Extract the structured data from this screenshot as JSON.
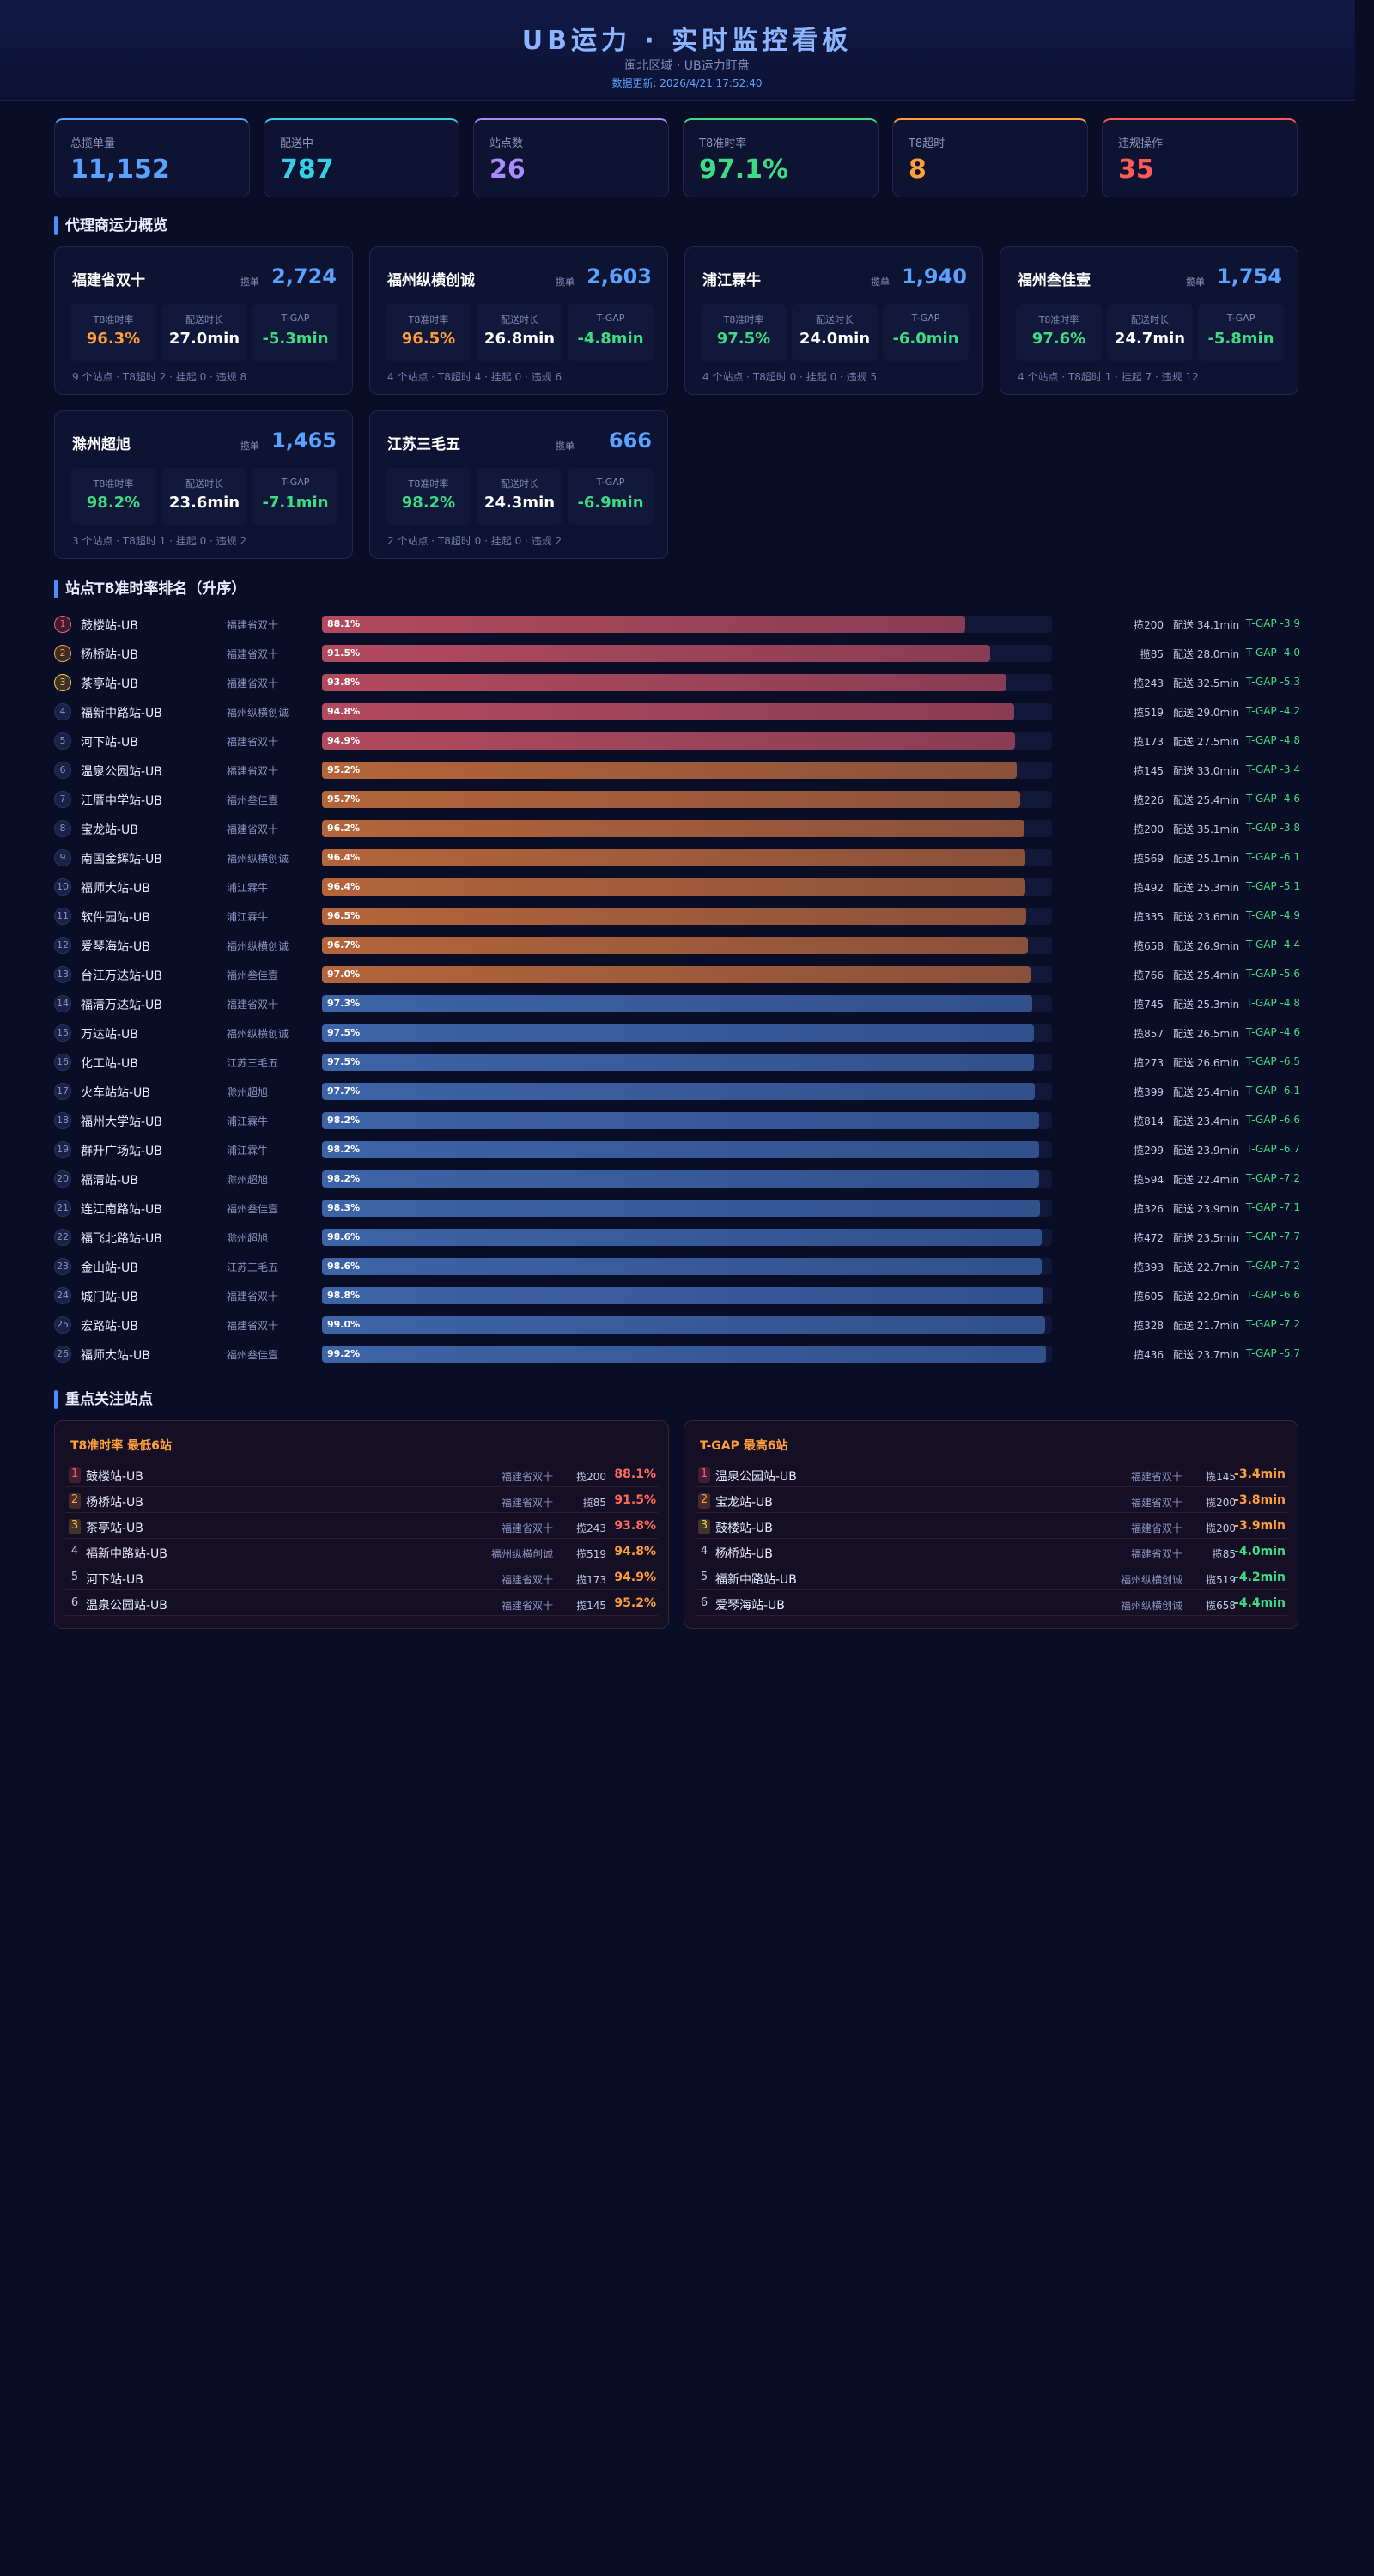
{
  "header": {
    "title": "UB运力 · 实时监控看板",
    "subtitle": "闽北区域 · UB运力盯盘",
    "updated": "数据更新: 2026/4/21 17:52:40"
  },
  "kpis": [
    {
      "label": "总揽单量",
      "value": "11,152",
      "color": "#5aa2ff"
    },
    {
      "label": "配送中",
      "value": "787",
      "color": "#35d0e8"
    },
    {
      "label": "站点数",
      "value": "26",
      "color": "#a98bff"
    },
    {
      "label": "T8准时率",
      "value": "97.1%",
      "color": "#3ddc84"
    },
    {
      "label": "T8超时",
      "value": "8",
      "color": "#ff9f3a"
    },
    {
      "label": "违规操作",
      "value": "35",
      "color": "#ff5a5a"
    }
  ],
  "agents": {
    "title": "代理商运力概览",
    "labels": {
      "orders": "揽单",
      "ontime": "T8准时率",
      "duration": "配送时长",
      "gap": "T-GAP"
    },
    "items": [
      {
        "name": "福建省双十",
        "orders": "2,724",
        "ontime": "96.3%",
        "ontime_color": "#ff9f3a",
        "duration": "27.0min",
        "gap": "-5.3min",
        "footer": "9 个站点 · T8超时 2 · 挂起 0 · 违规 8"
      },
      {
        "name": "福州纵横创诚",
        "orders": "2,603",
        "ontime": "96.5%",
        "ontime_color": "#ff9f3a",
        "duration": "26.8min",
        "gap": "-4.8min",
        "footer": "4 个站点 · T8超时 4 · 挂起 0 · 违规 6"
      },
      {
        "name": "浦江霖牛",
        "orders": "1,940",
        "ontime": "97.5%",
        "ontime_color": "#3ddc84",
        "duration": "24.0min",
        "gap": "-6.0min",
        "footer": "4 个站点 · T8超时 0 · 挂起 0 · 违规 5"
      },
      {
        "name": "福州叁佳壹",
        "orders": "1,754",
        "ontime": "97.6%",
        "ontime_color": "#3ddc84",
        "duration": "24.7min",
        "gap": "-5.8min",
        "footer": "4 个站点 · T8超时 1 · 挂起 7 · 违规 12"
      },
      {
        "name": "滁州超旭",
        "orders": "1,465",
        "ontime": "98.2%",
        "ontime_color": "#3ddc84",
        "duration": "23.6min",
        "gap": "-7.1min",
        "footer": "3 个站点 · T8超时 1 · 挂起 0 · 违规 2"
      },
      {
        "name": "江苏三毛五",
        "orders": "666",
        "ontime": "98.2%",
        "ontime_color": "#3ddc84",
        "duration": "24.3min",
        "gap": "-6.9min",
        "footer": "2 个站点 · T8超时 0 · 挂起 0 · 违规 2"
      }
    ]
  },
  "ranking": {
    "title": "站点T8准时率排名（升序）",
    "rows": [
      {
        "rank": 1,
        "name": "鼓楼站-UB",
        "agent": "福建省双十",
        "rate": 88.1,
        "rate_label": "88.1%",
        "orders": "揽200",
        "duration": "配送 34.1min",
        "gap": "T-GAP -3.9",
        "color": "#b34a5e"
      },
      {
        "rank": 2,
        "name": "杨桥站-UB",
        "agent": "福建省双十",
        "rate": 91.5,
        "rate_label": "91.5%",
        "orders": "揽85",
        "duration": "配送 28.0min",
        "gap": "T-GAP -4.0",
        "color": "#b34a5e"
      },
      {
        "rank": 3,
        "name": "茶亭站-UB",
        "agent": "福建省双十",
        "rate": 93.8,
        "rate_label": "93.8%",
        "orders": "揽243",
        "duration": "配送 32.5min",
        "gap": "T-GAP -5.3",
        "color": "#b34a5e"
      },
      {
        "rank": 4,
        "name": "福新中路站-UB",
        "agent": "福州纵横创诚",
        "rate": 94.8,
        "rate_label": "94.8%",
        "orders": "揽519",
        "duration": "配送 29.0min",
        "gap": "T-GAP -4.2",
        "color": "#b34a5e"
      },
      {
        "rank": 5,
        "name": "河下站-UB",
        "agent": "福建省双十",
        "rate": 94.9,
        "rate_label": "94.9%",
        "orders": "揽173",
        "duration": "配送 27.5min",
        "gap": "T-GAP -4.8",
        "color": "#b34a5e"
      },
      {
        "rank": 6,
        "name": "温泉公园站-UB",
        "agent": "福建省双十",
        "rate": 95.2,
        "rate_label": "95.2%",
        "orders": "揽145",
        "duration": "配送 33.0min",
        "gap": "T-GAP -3.4",
        "color": "#b5653a"
      },
      {
        "rank": 7,
        "name": "江厝中学站-UB",
        "agent": "福州叁佳壹",
        "rate": 95.7,
        "rate_label": "95.7%",
        "orders": "揽226",
        "duration": "配送 25.4min",
        "gap": "T-GAP -4.6",
        "color": "#b5653a"
      },
      {
        "rank": 8,
        "name": "宝龙站-UB",
        "agent": "福建省双十",
        "rate": 96.2,
        "rate_label": "96.2%",
        "orders": "揽200",
        "duration": "配送 35.1min",
        "gap": "T-GAP -3.8",
        "color": "#b5653a"
      },
      {
        "rank": 9,
        "name": "南国金辉站-UB",
        "agent": "福州纵横创诚",
        "rate": 96.4,
        "rate_label": "96.4%",
        "orders": "揽569",
        "duration": "配送 25.1min",
        "gap": "T-GAP -6.1",
        "color": "#b5653a"
      },
      {
        "rank": 10,
        "name": "福师大站-UB",
        "agent": "浦江霖牛",
        "rate": 96.4,
        "rate_label": "96.4%",
        "orders": "揽492",
        "duration": "配送 25.3min",
        "gap": "T-GAP -5.1",
        "color": "#b5653a"
      },
      {
        "rank": 11,
        "name": "软件园站-UB",
        "agent": "浦江霖牛",
        "rate": 96.5,
        "rate_label": "96.5%",
        "orders": "揽335",
        "duration": "配送 23.6min",
        "gap": "T-GAP -4.9",
        "color": "#b5653a"
      },
      {
        "rank": 12,
        "name": "爱琴海站-UB",
        "agent": "福州纵横创诚",
        "rate": 96.7,
        "rate_label": "96.7%",
        "orders": "揽658",
        "duration": "配送 26.9min",
        "gap": "T-GAP -4.4",
        "color": "#b5653a"
      },
      {
        "rank": 13,
        "name": "台江万达站-UB",
        "agent": "福州叁佳壹",
        "rate": 97.0,
        "rate_label": "97.0%",
        "orders": "揽766",
        "duration": "配送 25.4min",
        "gap": "T-GAP -5.6",
        "color": "#b5653a"
      },
      {
        "rank": 14,
        "name": "福清万达站-UB",
        "agent": "福建省双十",
        "rate": 97.3,
        "rate_label": "97.3%",
        "orders": "揽745",
        "duration": "配送 25.3min",
        "gap": "T-GAP -4.8",
        "color": "#3d64a8"
      },
      {
        "rank": 15,
        "name": "万达站-UB",
        "agent": "福州纵横创诚",
        "rate": 97.5,
        "rate_label": "97.5%",
        "orders": "揽857",
        "duration": "配送 26.5min",
        "gap": "T-GAP -4.6",
        "color": "#3d64a8"
      },
      {
        "rank": 16,
        "name": "化工站-UB",
        "agent": "江苏三毛五",
        "rate": 97.5,
        "rate_label": "97.5%",
        "orders": "揽273",
        "duration": "配送 26.6min",
        "gap": "T-GAP -6.5",
        "color": "#3d64a8"
      },
      {
        "rank": 17,
        "name": "火车站站-UB",
        "agent": "滁州超旭",
        "rate": 97.7,
        "rate_label": "97.7%",
        "orders": "揽399",
        "duration": "配送 25.4min",
        "gap": "T-GAP -6.1",
        "color": "#3d64a8"
      },
      {
        "rank": 18,
        "name": "福州大学站-UB",
        "agent": "浦江霖牛",
        "rate": 98.2,
        "rate_label": "98.2%",
        "orders": "揽814",
        "duration": "配送 23.4min",
        "gap": "T-GAP -6.6",
        "color": "#3d64a8"
      },
      {
        "rank": 19,
        "name": "群升广场站-UB",
        "agent": "浦江霖牛",
        "rate": 98.2,
        "rate_label": "98.2%",
        "orders": "揽299",
        "duration": "配送 23.9min",
        "gap": "T-GAP -6.7",
        "color": "#3d64a8"
      },
      {
        "rank": 20,
        "name": "福清站-UB",
        "agent": "滁州超旭",
        "rate": 98.2,
        "rate_label": "98.2%",
        "orders": "揽594",
        "duration": "配送 22.4min",
        "gap": "T-GAP -7.2",
        "color": "#3d64a8"
      },
      {
        "rank": 21,
        "name": "连江南路站-UB",
        "agent": "福州叁佳壹",
        "rate": 98.3,
        "rate_label": "98.3%",
        "orders": "揽326",
        "duration": "配送 23.9min",
        "gap": "T-GAP -7.1",
        "color": "#3d64a8"
      },
      {
        "rank": 22,
        "name": "福飞北路站-UB",
        "agent": "滁州超旭",
        "rate": 98.6,
        "rate_label": "98.6%",
        "orders": "揽472",
        "duration": "配送 23.5min",
        "gap": "T-GAP -7.7",
        "color": "#3d64a8"
      },
      {
        "rank": 23,
        "name": "金山站-UB",
        "agent": "江苏三毛五",
        "rate": 98.6,
        "rate_label": "98.6%",
        "orders": "揽393",
        "duration": "配送 22.7min",
        "gap": "T-GAP -7.2",
        "color": "#3d64a8"
      },
      {
        "rank": 24,
        "name": "城门站-UB",
        "agent": "福建省双十",
        "rate": 98.8,
        "rate_label": "98.8%",
        "orders": "揽605",
        "duration": "配送 22.9min",
        "gap": "T-GAP -6.6",
        "color": "#3d64a8"
      },
      {
        "rank": 25,
        "name": "宏路站-UB",
        "agent": "福建省双十",
        "rate": 99.0,
        "rate_label": "99.0%",
        "orders": "揽328",
        "duration": "配送 21.7min",
        "gap": "T-GAP -7.2",
        "color": "#3d64a8"
      },
      {
        "rank": 26,
        "name": "福师大站-UB",
        "agent": "福州叁佳壹",
        "rate": 99.2,
        "rate_label": "99.2%",
        "orders": "揽436",
        "duration": "配送 23.7min",
        "gap": "T-GAP -5.7",
        "color": "#3d64a8"
      }
    ]
  },
  "focus": {
    "title": "重点关注站点",
    "panels": [
      {
        "title": "T8准时率 最低6站",
        "rows": [
          {
            "rank": 1,
            "name": "鼓楼站-UB",
            "agent": "福建省双十",
            "orders": "揽200",
            "value": "88.1%",
            "color": "#ff6a5a"
          },
          {
            "rank": 2,
            "name": "杨桥站-UB",
            "agent": "福建省双十",
            "orders": "揽85",
            "value": "91.5%",
            "color": "#ff6a5a"
          },
          {
            "rank": 3,
            "name": "茶亭站-UB",
            "agent": "福建省双十",
            "orders": "揽243",
            "value": "93.8%",
            "color": "#ff6a5a"
          },
          {
            "rank": 4,
            "name": "福新中路站-UB",
            "agent": "福州纵横创诚",
            "orders": "揽519",
            "value": "94.8%",
            "color": "#ff9f3a"
          },
          {
            "rank": 5,
            "name": "河下站-UB",
            "agent": "福建省双十",
            "orders": "揽173",
            "value": "94.9%",
            "color": "#ff9f3a"
          },
          {
            "rank": 6,
            "name": "温泉公园站-UB",
            "agent": "福建省双十",
            "orders": "揽145",
            "value": "95.2%",
            "color": "#ff9f3a"
          }
        ]
      },
      {
        "title": "T-GAP 最高6站",
        "rows": [
          {
            "rank": 1,
            "name": "温泉公园站-UB",
            "agent": "福建省双十",
            "orders": "揽145",
            "value": "-3.4min",
            "color": "#ff9f3a"
          },
          {
            "rank": 2,
            "name": "宝龙站-UB",
            "agent": "福建省双十",
            "orders": "揽200",
            "value": "-3.8min",
            "color": "#ff9f3a"
          },
          {
            "rank": 3,
            "name": "鼓楼站-UB",
            "agent": "福建省双十",
            "orders": "揽200",
            "value": "-3.9min",
            "color": "#ff9f3a"
          },
          {
            "rank": 4,
            "name": "杨桥站-UB",
            "agent": "福建省双十",
            "orders": "揽85",
            "value": "-4.0min",
            "color": "#3ddc84"
          },
          {
            "rank": 5,
            "name": "福新中路站-UB",
            "agent": "福州纵横创诚",
            "orders": "揽519",
            "value": "-4.2min",
            "color": "#3ddc84"
          },
          {
            "rank": 6,
            "name": "爱琴海站-UB",
            "agent": "福州纵横创诚",
            "orders": "揽658",
            "value": "-4.4min",
            "color": "#3ddc84"
          }
        ]
      }
    ]
  }
}
